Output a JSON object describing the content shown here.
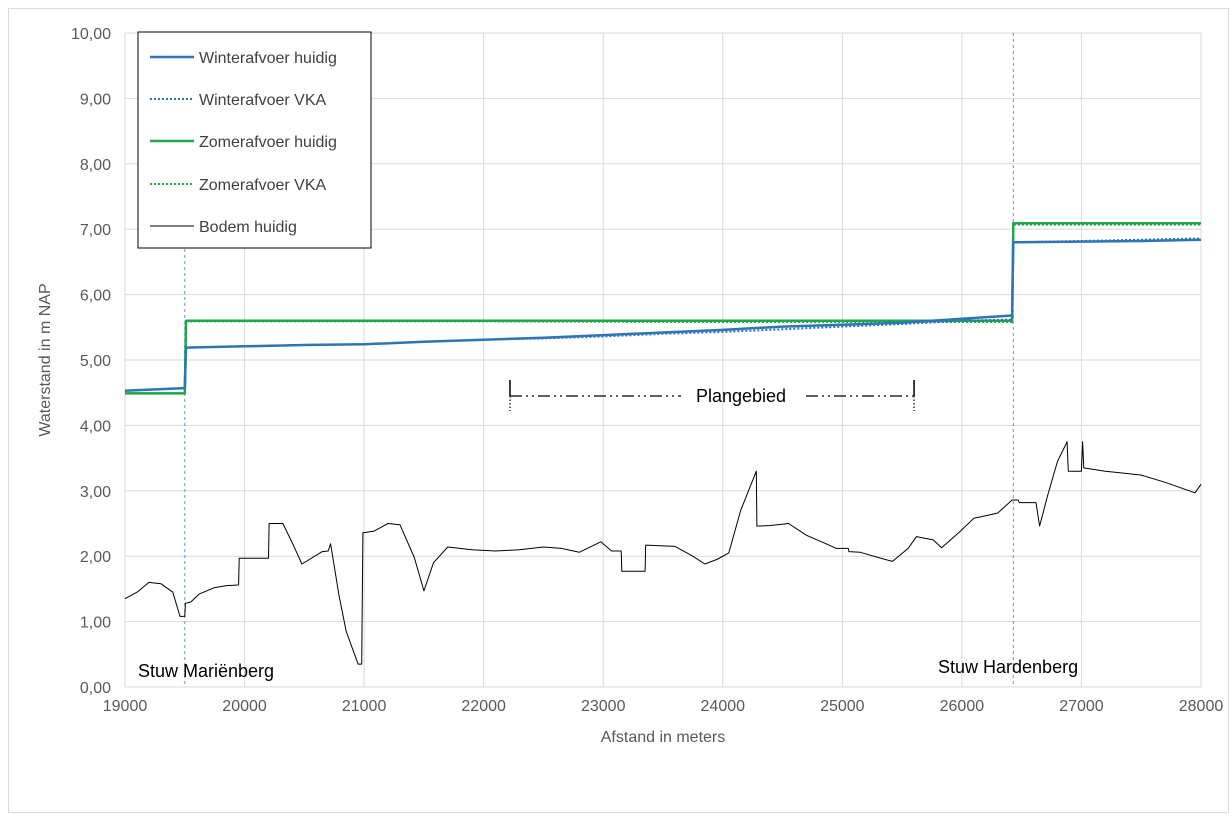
{
  "chart_data": {
    "type": "line",
    "title": "",
    "xlabel": "Afstand in meters",
    "ylabel": "Waterstand in m NAP",
    "xlim": [
      19000,
      28000
    ],
    "ylim": [
      0,
      10
    ],
    "x_ticks": [
      "19000",
      "20000",
      "21000",
      "22000",
      "23000",
      "24000",
      "25000",
      "26000",
      "27000",
      "28000"
    ],
    "y_ticks": [
      "0,00",
      "1,00",
      "2,00",
      "3,00",
      "4,00",
      "5,00",
      "6,00",
      "7,00",
      "8,00",
      "9,00",
      "10,00"
    ],
    "grid": true,
    "legend_position": "top-left",
    "series": [
      {
        "name": "Winterafvoer huidig",
        "color": "#2e75b6",
        "style": "solid",
        "points": [
          [
            19000,
            4.53
          ],
          [
            19500,
            4.57
          ],
          [
            19510,
            5.19
          ],
          [
            20000,
            5.21
          ],
          [
            20500,
            5.23
          ],
          [
            21000,
            5.24
          ],
          [
            21500,
            5.28
          ],
          [
            22000,
            5.31
          ],
          [
            22500,
            5.34
          ],
          [
            23000,
            5.38
          ],
          [
            23500,
            5.42
          ],
          [
            24000,
            5.46
          ],
          [
            24500,
            5.51
          ],
          [
            25000,
            5.54
          ],
          [
            25500,
            5.57
          ],
          [
            26000,
            5.63
          ],
          [
            26420,
            5.68
          ],
          [
            26430,
            6.8
          ],
          [
            27000,
            6.81
          ],
          [
            27500,
            6.82
          ],
          [
            28000,
            6.84
          ]
        ]
      },
      {
        "name": "Winterafvoer VKA",
        "color": "#2e75b6",
        "style": "dotted",
        "points": [
          [
            19000,
            4.53
          ],
          [
            19500,
            4.57
          ],
          [
            19510,
            5.19
          ],
          [
            20000,
            5.21
          ],
          [
            20500,
            5.23
          ],
          [
            21000,
            5.24
          ],
          [
            21500,
            5.28
          ],
          [
            22000,
            5.31
          ],
          [
            22500,
            5.33
          ],
          [
            23000,
            5.36
          ],
          [
            23500,
            5.4
          ],
          [
            24000,
            5.43
          ],
          [
            24500,
            5.47
          ],
          [
            25000,
            5.51
          ],
          [
            25500,
            5.55
          ],
          [
            26000,
            5.6
          ],
          [
            26420,
            5.62
          ],
          [
            26430,
            6.8
          ],
          [
            27000,
            6.82
          ],
          [
            27500,
            6.84
          ],
          [
            28000,
            6.86
          ]
        ]
      },
      {
        "name": "Zomerafvoer huidig",
        "color": "#21a54a",
        "style": "solid",
        "points": [
          [
            19000,
            4.49
          ],
          [
            19500,
            4.49
          ],
          [
            19510,
            5.6
          ],
          [
            20000,
            5.6
          ],
          [
            22000,
            5.6
          ],
          [
            24000,
            5.6
          ],
          [
            26000,
            5.6
          ],
          [
            26420,
            5.6
          ],
          [
            26430,
            7.09
          ],
          [
            27000,
            7.09
          ],
          [
            28000,
            7.09
          ]
        ]
      },
      {
        "name": "Zomerafvoer VKA",
        "color": "#21a54a",
        "style": "dotted",
        "points": [
          [
            19000,
            4.49
          ],
          [
            19500,
            4.49
          ],
          [
            19510,
            5.59
          ],
          [
            20000,
            5.59
          ],
          [
            22000,
            5.59
          ],
          [
            24000,
            5.58
          ],
          [
            26000,
            5.58
          ],
          [
            26420,
            5.58
          ],
          [
            26430,
            7.07
          ],
          [
            27000,
            7.07
          ],
          [
            28000,
            7.07
          ]
        ]
      },
      {
        "name": "Bodem huidig",
        "color": "#000000",
        "style": "solid",
        "points": [
          [
            19000,
            1.35
          ],
          [
            19100,
            1.45
          ],
          [
            19200,
            1.6
          ],
          [
            19300,
            1.58
          ],
          [
            19400,
            1.45
          ],
          [
            19460,
            1.08
          ],
          [
            19500,
            1.08
          ],
          [
            19505,
            1.28
          ],
          [
            19550,
            1.3
          ],
          [
            19620,
            1.42
          ],
          [
            19750,
            1.52
          ],
          [
            19850,
            1.55
          ],
          [
            19950,
            1.56
          ],
          [
            19955,
            1.97
          ],
          [
            20200,
            1.97
          ],
          [
            20205,
            2.5
          ],
          [
            20320,
            2.5
          ],
          [
            20400,
            2.2
          ],
          [
            20480,
            1.88
          ],
          [
            20650,
            2.07
          ],
          [
            20700,
            2.08
          ],
          [
            20720,
            2.19
          ],
          [
            20790,
            1.4
          ],
          [
            20850,
            0.85
          ],
          [
            20950,
            0.35
          ],
          [
            20980,
            0.35
          ],
          [
            20990,
            2.36
          ],
          [
            21080,
            2.38
          ],
          [
            21200,
            2.5
          ],
          [
            21300,
            2.48
          ],
          [
            21420,
            1.98
          ],
          [
            21500,
            1.47
          ],
          [
            21580,
            1.9
          ],
          [
            21700,
            2.14
          ],
          [
            21900,
            2.1
          ],
          [
            22100,
            2.08
          ],
          [
            22300,
            2.1
          ],
          [
            22500,
            2.14
          ],
          [
            22650,
            2.12
          ],
          [
            22800,
            2.06
          ],
          [
            22980,
            2.22
          ],
          [
            23070,
            2.08
          ],
          [
            23150,
            2.08
          ],
          [
            23155,
            1.77
          ],
          [
            23350,
            1.77
          ],
          [
            23355,
            2.17
          ],
          [
            23600,
            2.15
          ],
          [
            23750,
            2.0
          ],
          [
            23850,
            1.88
          ],
          [
            23950,
            1.95
          ],
          [
            24050,
            2.05
          ],
          [
            24150,
            2.7
          ],
          [
            24280,
            3.3
          ],
          [
            24285,
            2.46
          ],
          [
            24400,
            2.47
          ],
          [
            24550,
            2.5
          ],
          [
            24700,
            2.32
          ],
          [
            24850,
            2.2
          ],
          [
            24950,
            2.12
          ],
          [
            25050,
            2.12
          ],
          [
            25055,
            2.07
          ],
          [
            25150,
            2.06
          ],
          [
            25300,
            1.98
          ],
          [
            25420,
            1.92
          ],
          [
            25550,
            2.12
          ],
          [
            25620,
            2.3
          ],
          [
            25760,
            2.25
          ],
          [
            25830,
            2.13
          ],
          [
            25980,
            2.37
          ],
          [
            26100,
            2.58
          ],
          [
            26200,
            2.62
          ],
          [
            26300,
            2.66
          ],
          [
            26420,
            2.86
          ],
          [
            26470,
            2.86
          ],
          [
            26480,
            2.82
          ],
          [
            26620,
            2.82
          ],
          [
            26650,
            2.46
          ],
          [
            26720,
            2.95
          ],
          [
            26800,
            3.45
          ],
          [
            26880,
            3.75
          ],
          [
            26890,
            3.3
          ],
          [
            27000,
            3.3
          ],
          [
            27010,
            3.75
          ],
          [
            27020,
            3.35
          ],
          [
            27200,
            3.3
          ],
          [
            27350,
            3.27
          ],
          [
            27500,
            3.24
          ],
          [
            27700,
            3.13
          ],
          [
            27950,
            2.97
          ],
          [
            28000,
            3.1
          ]
        ]
      }
    ],
    "annotations": [
      {
        "text": "Stuw Mariënberg",
        "x": 19500
      },
      {
        "text": "Stuw Hardenberg",
        "x": 26430
      },
      {
        "text": "Plangebied",
        "x_from": 22220,
        "x_to": 25600,
        "y": 4.45
      }
    ]
  }
}
